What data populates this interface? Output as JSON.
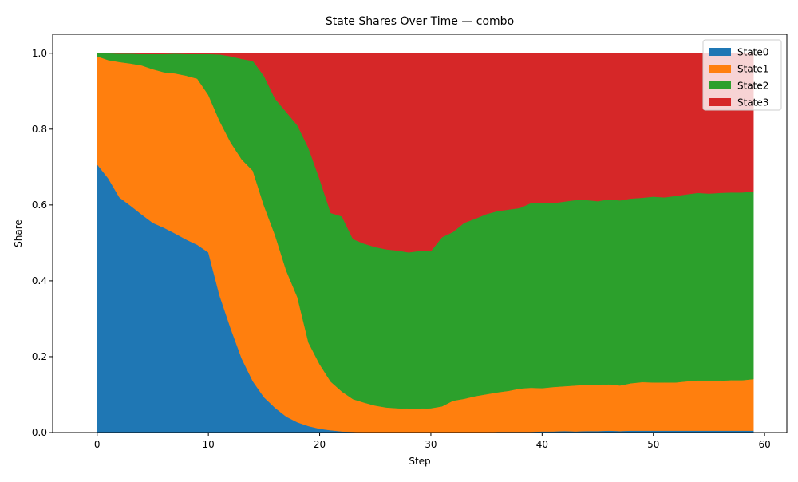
{
  "chart_data": {
    "type": "area",
    "title": "State Shares Over Time — combo",
    "xlabel": "Step",
    "ylabel": "Share",
    "xlim": [
      -4,
      62
    ],
    "ylim": [
      0,
      1.05
    ],
    "xticks": [
      0,
      10,
      20,
      30,
      40,
      50,
      60
    ],
    "xtick_labels": [
      "0",
      "10",
      "20",
      "30",
      "40",
      "50",
      "60"
    ],
    "yticks": [
      0.0,
      0.2,
      0.4,
      0.6,
      0.8,
      1.0
    ],
    "ytick_labels": [
      "0.0",
      "0.2",
      "0.4",
      "0.6",
      "0.8",
      "1.0"
    ],
    "stacked": true,
    "grid": false,
    "legend_position": "top-right",
    "x": [
      0,
      1,
      2,
      3,
      4,
      5,
      6,
      7,
      8,
      9,
      10,
      11,
      12,
      13,
      14,
      15,
      16,
      17,
      18,
      19,
      20,
      21,
      22,
      23,
      24,
      25,
      26,
      27,
      28,
      29,
      30,
      31,
      32,
      33,
      34,
      35,
      36,
      37,
      38,
      39,
      40,
      41,
      42,
      43,
      44,
      45,
      46,
      47,
      48,
      49,
      50,
      51,
      52,
      53,
      54,
      55,
      56,
      57,
      58,
      59
    ],
    "series": [
      {
        "name": "State0",
        "color": "#1f77b4",
        "values": [
          0.707,
          0.67,
          0.62,
          0.598,
          0.575,
          0.553,
          0.54,
          0.525,
          0.509,
          0.495,
          0.475,
          0.362,
          0.275,
          0.195,
          0.135,
          0.093,
          0.065,
          0.042,
          0.027,
          0.017,
          0.01,
          0.006,
          0.003,
          0.002,
          0.001,
          0.001,
          0.001,
          0.001,
          0.001,
          0.001,
          0.001,
          0.001,
          0.001,
          0.001,
          0.001,
          0.001,
          0.002,
          0.002,
          0.002,
          0.002,
          0.003,
          0.003,
          0.004,
          0.003,
          0.004,
          0.004,
          0.005,
          0.004,
          0.005,
          0.005,
          0.005,
          0.005,
          0.005,
          0.005,
          0.005,
          0.005,
          0.005,
          0.005,
          0.005,
          0.005
        ]
      },
      {
        "name": "State1",
        "color": "#ff7f0e",
        "values": [
          0.285,
          0.312,
          0.357,
          0.375,
          0.393,
          0.405,
          0.41,
          0.422,
          0.432,
          0.438,
          0.415,
          0.46,
          0.49,
          0.525,
          0.555,
          0.505,
          0.455,
          0.385,
          0.33,
          0.22,
          0.17,
          0.128,
          0.105,
          0.086,
          0.078,
          0.07,
          0.065,
          0.063,
          0.062,
          0.062,
          0.063,
          0.068,
          0.083,
          0.088,
          0.095,
          0.1,
          0.104,
          0.108,
          0.114,
          0.116,
          0.114,
          0.117,
          0.118,
          0.121,
          0.122,
          0.122,
          0.122,
          0.12,
          0.125,
          0.128,
          0.127,
          0.127,
          0.127,
          0.13,
          0.132,
          0.132,
          0.132,
          0.133,
          0.133,
          0.136
        ]
      },
      {
        "name": "State2",
        "color": "#2ca02c",
        "values": [
          0.008,
          0.018,
          0.022,
          0.026,
          0.03,
          0.04,
          0.048,
          0.052,
          0.057,
          0.065,
          0.108,
          0.175,
          0.227,
          0.265,
          0.29,
          0.342,
          0.36,
          0.418,
          0.453,
          0.513,
          0.488,
          0.445,
          0.462,
          0.422,
          0.419,
          0.418,
          0.417,
          0.416,
          0.412,
          0.416,
          0.414,
          0.446,
          0.445,
          0.464,
          0.468,
          0.475,
          0.478,
          0.478,
          0.476,
          0.487,
          0.488,
          0.485,
          0.487,
          0.489,
          0.487,
          0.484,
          0.488,
          0.488,
          0.487,
          0.486,
          0.49,
          0.488,
          0.492,
          0.493,
          0.495,
          0.493,
          0.495,
          0.495,
          0.495,
          0.495
        ]
      },
      {
        "name": "State3",
        "color": "#d62728",
        "values": [
          0.0,
          0.0,
          0.001,
          0.001,
          0.002,
          0.002,
          0.002,
          0.001,
          0.002,
          0.002,
          0.002,
          0.003,
          0.008,
          0.015,
          0.02,
          0.06,
          0.12,
          0.155,
          0.19,
          0.25,
          0.332,
          0.421,
          0.43,
          0.49,
          0.502,
          0.511,
          0.517,
          0.52,
          0.525,
          0.521,
          0.522,
          0.485,
          0.471,
          0.447,
          0.436,
          0.424,
          0.416,
          0.412,
          0.408,
          0.395,
          0.395,
          0.395,
          0.391,
          0.387,
          0.387,
          0.39,
          0.385,
          0.388,
          0.383,
          0.381,
          0.378,
          0.38,
          0.376,
          0.372,
          0.368,
          0.37,
          0.368,
          0.367,
          0.367,
          0.364
        ]
      }
    ]
  }
}
